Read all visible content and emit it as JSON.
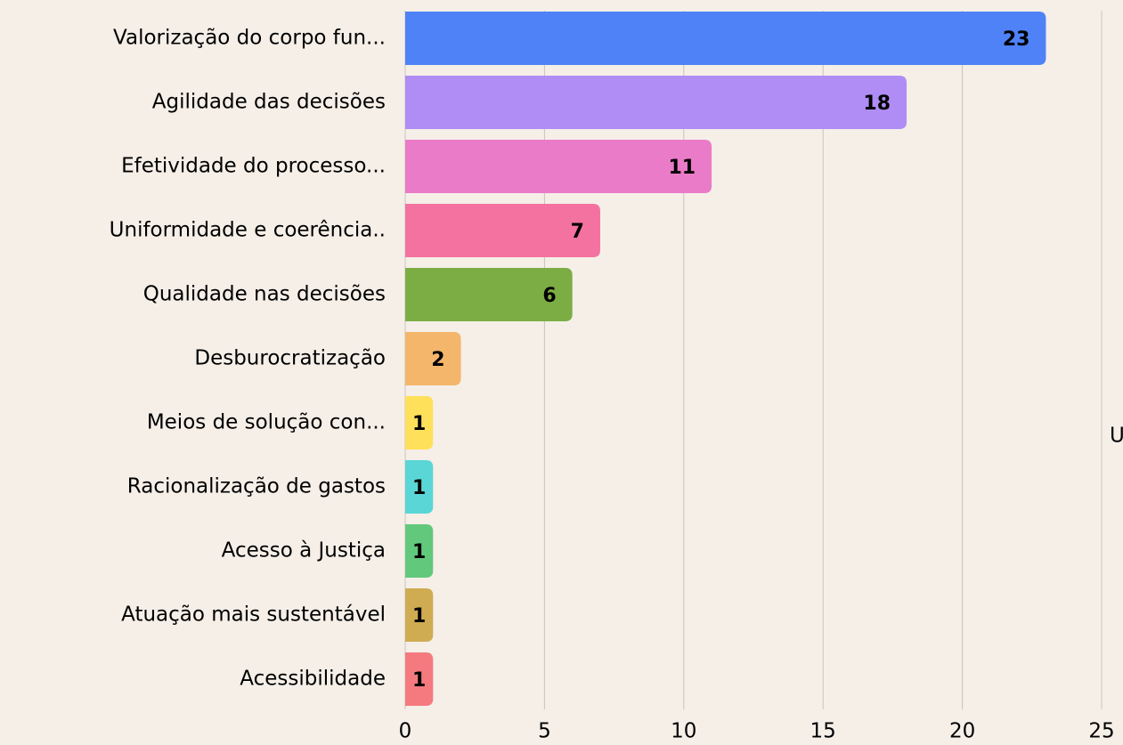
{
  "chart_data": {
    "type": "bar",
    "orientation": "horizontal",
    "categories": [
      "Valorização do corpo fun...",
      "Agilidade das decisões",
      "Efetividade do processo...",
      "Uniformidade e coerência..",
      "Qualidade nas decisões",
      "Desburocratização",
      "Meios de solução con...",
      "Racionalização de gastos",
      "Acesso à Justiça",
      "Atuação mais sustentável",
      "Acessibilidade"
    ],
    "values": [
      23,
      18,
      11,
      7,
      6,
      2,
      1,
      1,
      1,
      1,
      1
    ],
    "colors": [
      "#4f82f7",
      "#b08cf5",
      "#ea7bc8",
      "#f4729f",
      "#7cad45",
      "#f4b66b",
      "#ffe05a",
      "#5ad6d6",
      "#62c87c",
      "#cfac52",
      "#f47a7f"
    ],
    "xlim": [
      0,
      25
    ],
    "xticks": [
      0,
      5,
      10,
      15,
      20,
      25
    ],
    "grid": true,
    "annotation": "U"
  }
}
